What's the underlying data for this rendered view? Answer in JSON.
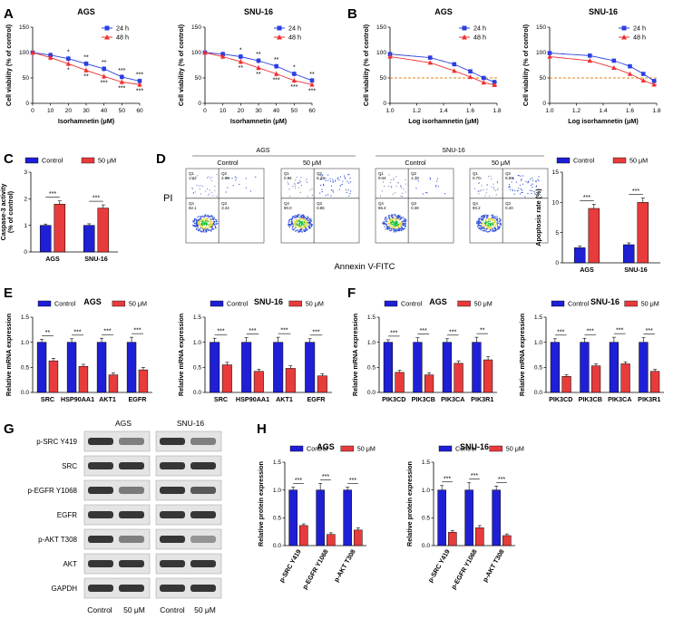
{
  "figure": {
    "panel_letters": {
      "A": "A",
      "B": "B",
      "C": "C",
      "D": "D",
      "E": "E",
      "F": "F",
      "G": "G",
      "H": "H"
    },
    "colors": {
      "c24": "#2a3fe0",
      "c48": "#ee3030",
      "control": "#1f1fd6",
      "treat": "#e83b3b",
      "dose_line": "#e08a1a"
    },
    "D": {
      "cell_lines": [
        "AGS",
        "SNU-16"
      ],
      "conditions": [
        "Control",
        "50 μM"
      ],
      "y_axis_label": "PI",
      "x_axis_label": "Annexin V-FITC",
      "plots": [
        {
          "quadrants": [
            "Q1\n1.42",
            "Q2\n2.99",
            "Q3\n3.44",
            "Q4\n92.1"
          ]
        },
        {
          "quadrants": [
            "Q1\n0.94",
            "Q2\n6.23",
            "Q3\n0.86",
            "Q4\n90.0"
          ]
        },
        {
          "quadrants": [
            "Q1\n0.44",
            "Q2\n1.79",
            "Q3\n0.38",
            "Q4\n96.4"
          ]
        },
        {
          "quadrants": [
            "Q1\n0.70",
            "Q2\n8.90",
            "Q3\n0.40",
            "Q4\n90.2"
          ]
        }
      ]
    },
    "G": {
      "cell_lines": [
        "AGS",
        "SNU-16"
      ],
      "bands": [
        "p-SRC Y419",
        "SRC",
        "p-EGFR Y1068",
        "EGFR",
        "p-AKT T308",
        "AKT",
        "GAPDH"
      ],
      "lanes": [
        "Control",
        "50 μM",
        "Control",
        "50 μM"
      ]
    }
  },
  "chart_data": [
    {
      "panel": "A",
      "type": "line",
      "title": "AGS",
      "xlabel": "Isorhamnetin (μM)",
      "ylabel": "Cell viability (% of control)",
      "x": [
        0,
        10,
        20,
        30,
        40,
        50,
        60
      ],
      "xlim": [
        0,
        60
      ],
      "ylim": [
        0,
        150
      ],
      "xticks": [
        "0",
        "10",
        "20",
        "30",
        "40",
        "50",
        "60"
      ],
      "yticks": [
        "0",
        "50",
        "100",
        "150"
      ],
      "series": [
        {
          "name": "24 h",
          "values": [
            100,
            95,
            88,
            78,
            68,
            52,
            44
          ]
        },
        {
          "name": "48 h",
          "values": [
            100,
            90,
            78,
            65,
            53,
            42,
            37
          ]
        }
      ],
      "annotations": [
        "*",
        "**",
        "**",
        "***",
        "***",
        "*",
        "**",
        "***",
        "***",
        "***"
      ]
    },
    {
      "panel": "A",
      "type": "line",
      "title": "SNU-16",
      "xlabel": "Isorhamnetin (μM)",
      "ylabel": "Cell viability (% of control)",
      "x": [
        0,
        10,
        20,
        30,
        40,
        50,
        60
      ],
      "xlim": [
        0,
        60
      ],
      "ylim": [
        0,
        150
      ],
      "xticks": [
        "0",
        "10",
        "20",
        "30",
        "40",
        "50",
        "60"
      ],
      "yticks": [
        "0",
        "50",
        "100",
        "150"
      ],
      "series": [
        {
          "name": "24 h",
          "values": [
            100,
            97,
            92,
            84,
            73,
            58,
            45
          ]
        },
        {
          "name": "48 h",
          "values": [
            100,
            92,
            82,
            70,
            58,
            45,
            37
          ]
        }
      ],
      "annotations": [
        "*",
        "**",
        "**",
        "*",
        "**",
        "**",
        "**",
        "***",
        "***",
        "***"
      ]
    },
    {
      "panel": "B",
      "type": "line",
      "title": "AGS",
      "xlabel": "Log isorhamnetin (μM)",
      "ylabel": "Cell viability (% of control)",
      "x": [
        1.0,
        1.3,
        1.48,
        1.6,
        1.7,
        1.78
      ],
      "xlim": [
        1.0,
        1.8
      ],
      "ylim": [
        0,
        150
      ],
      "reference_y": 50,
      "xticks": [
        "1.0",
        "1.2",
        "1.4",
        "1.6",
        "1.8"
      ],
      "yticks": [
        "0",
        "50",
        "100",
        "150"
      ],
      "series": [
        {
          "name": "24 h",
          "values": [
            97,
            90,
            77,
            63,
            50,
            42
          ]
        },
        {
          "name": "48 h",
          "values": [
            92,
            80,
            64,
            52,
            41,
            36
          ]
        }
      ]
    },
    {
      "panel": "B",
      "type": "line",
      "title": "SNU-16",
      "xlabel": "Log isorhamnetin (μM)",
      "ylabel": "Cell viability (% of control)",
      "x": [
        1.0,
        1.3,
        1.48,
        1.6,
        1.7,
        1.78
      ],
      "xlim": [
        1.0,
        1.8
      ],
      "ylim": [
        0,
        150
      ],
      "reference_y": 50,
      "xticks": [
        "1.0",
        "1.2",
        "1.4",
        "1.6",
        "1.8"
      ],
      "yticks": [
        "0",
        "50",
        "100",
        "150"
      ],
      "series": [
        {
          "name": "24 h",
          "values": [
            99,
            94,
            84,
            73,
            58,
            44
          ]
        },
        {
          "name": "48 h",
          "values": [
            92,
            84,
            70,
            58,
            45,
            37
          ]
        }
      ]
    },
    {
      "panel": "C",
      "type": "bar",
      "title": "",
      "ylabel": "Caspase-3 activity\n(% of control)",
      "ylim": [
        0,
        3
      ],
      "yticks": [
        "0",
        "1",
        "2",
        "3"
      ],
      "categories": [
        "AGS",
        "SNU-16"
      ],
      "series": [
        {
          "name": "Control",
          "values": [
            1.0,
            1.0
          ],
          "errors": [
            0.05,
            0.06
          ]
        },
        {
          "name": "50 μM",
          "values": [
            1.8,
            1.65
          ],
          "errors": [
            0.12,
            0.12
          ]
        }
      ],
      "annotations": [
        "***",
        "***"
      ]
    },
    {
      "panel": "D",
      "type": "bar",
      "title": "",
      "ylabel": "Apoptosis rate (%)",
      "ylim": [
        0,
        15
      ],
      "yticks": [
        "0",
        "5",
        "10",
        "15"
      ],
      "categories": [
        "AGS",
        "SNU-16"
      ],
      "series": [
        {
          "name": "Control",
          "values": [
            2.5,
            3.0
          ],
          "errors": [
            0.3,
            0.3
          ]
        },
        {
          "name": "50 μM",
          "values": [
            9.0,
            10.0
          ],
          "errors": [
            0.7,
            0.7
          ]
        }
      ],
      "annotations": [
        "***",
        "***"
      ]
    },
    {
      "panel": "E",
      "type": "bar",
      "title": "AGS",
      "ylabel": "Relative mRNA expression",
      "ylim": [
        0,
        1.5
      ],
      "yticks": [
        "0.0",
        "0.5",
        "1.0",
        "1.5"
      ],
      "categories": [
        "SRC",
        "HSP90AA1",
        "AKT1",
        "EGFR"
      ],
      "series": [
        {
          "name": "Control",
          "values": [
            1.0,
            1.0,
            1.0,
            1.0
          ],
          "errors": [
            0.06,
            0.07,
            0.08,
            0.1
          ]
        },
        {
          "name": "50 μM",
          "values": [
            0.63,
            0.52,
            0.35,
            0.45
          ],
          "errors": [
            0.05,
            0.04,
            0.04,
            0.05
          ]
        }
      ],
      "annotations": [
        "**",
        "***",
        "***",
        "***"
      ]
    },
    {
      "panel": "E",
      "type": "bar",
      "title": "SNU-16",
      "ylabel": "Relative mRNA expression",
      "ylim": [
        0,
        1.5
      ],
      "yticks": [
        "0.0",
        "0.5",
        "1.0",
        "1.5"
      ],
      "categories": [
        "SRC",
        "HSP90AA1",
        "AKT1",
        "EGFR"
      ],
      "series": [
        {
          "name": "Control",
          "values": [
            1.0,
            1.0,
            1.0,
            1.0
          ],
          "errors": [
            0.08,
            0.09,
            0.1,
            0.07
          ]
        },
        {
          "name": "50 μM",
          "values": [
            0.55,
            0.42,
            0.48,
            0.33
          ],
          "errors": [
            0.05,
            0.04,
            0.05,
            0.04
          ]
        }
      ],
      "annotations": [
        "***",
        "***",
        "***",
        "***"
      ]
    },
    {
      "panel": "F",
      "type": "bar",
      "title": "AGS",
      "ylabel": "Relative mRNA expression",
      "ylim": [
        0,
        1.5
      ],
      "yticks": [
        "0.0",
        "0.5",
        "1.0",
        "1.5"
      ],
      "categories": [
        "PIK3CD",
        "PIK3CB",
        "PIK3CA",
        "PIK3R1"
      ],
      "series": [
        {
          "name": "Control",
          "values": [
            1.0,
            1.0,
            1.0,
            1.0
          ],
          "errors": [
            0.05,
            0.09,
            0.07,
            0.1
          ]
        },
        {
          "name": "50 μM",
          "values": [
            0.4,
            0.35,
            0.58,
            0.65
          ],
          "errors": [
            0.04,
            0.04,
            0.05,
            0.06
          ]
        }
      ],
      "annotations": [
        "***",
        "***",
        "***",
        "**"
      ]
    },
    {
      "panel": "F",
      "type": "bar",
      "title": "SNU-16",
      "ylabel": "Relative mRNA expression",
      "ylim": [
        0,
        1.5
      ],
      "yticks": [
        "0.0",
        "0.5",
        "1.0",
        "1.5"
      ],
      "categories": [
        "PIK3CD",
        "PIK3CB",
        "PIK3CA",
        "PIK3R1"
      ],
      "series": [
        {
          "name": "Control",
          "values": [
            1.0,
            1.0,
            1.0,
            1.0
          ],
          "errors": [
            0.07,
            0.08,
            0.1,
            0.09
          ]
        },
        {
          "name": "50 μM",
          "values": [
            0.32,
            0.53,
            0.57,
            0.42
          ],
          "errors": [
            0.03,
            0.04,
            0.04,
            0.04
          ]
        }
      ],
      "annotations": [
        "***",
        "***",
        "***",
        "***"
      ]
    },
    {
      "panel": "H",
      "type": "bar",
      "title": "AGS",
      "ylabel": "Relative protein expression",
      "ylim": [
        0,
        1.5
      ],
      "yticks": [
        "0.0",
        "0.5",
        "1.0",
        "1.5"
      ],
      "categories": [
        "p-SRC Y419",
        "p-EGFR Y1068",
        "p-AKT T308"
      ],
      "series": [
        {
          "name": "Control",
          "values": [
            1.0,
            1.0,
            1.0
          ],
          "errors": [
            0.05,
            0.12,
            0.05
          ]
        },
        {
          "name": "50 μM",
          "values": [
            0.36,
            0.2,
            0.28
          ],
          "errors": [
            0.03,
            0.03,
            0.04
          ]
        }
      ],
      "annotations": [
        "***",
        "***",
        "***"
      ]
    },
    {
      "panel": "H",
      "type": "bar",
      "title": "SNU-16",
      "ylabel": "Relative protein expression",
      "ylim": [
        0,
        1.5
      ],
      "yticks": [
        "0.0",
        "0.5",
        "1.0",
        "1.5"
      ],
      "categories": [
        "p-SRC Y419",
        "p-EGFR Y1068",
        "p-AKT T308"
      ],
      "series": [
        {
          "name": "Control",
          "values": [
            1.0,
            1.0,
            1.0
          ],
          "errors": [
            0.08,
            0.13,
            0.07
          ]
        },
        {
          "name": "50 μM",
          "values": [
            0.24,
            0.32,
            0.18
          ],
          "errors": [
            0.03,
            0.04,
            0.03
          ]
        }
      ],
      "annotations": [
        "***",
        "***",
        "***"
      ]
    }
  ]
}
